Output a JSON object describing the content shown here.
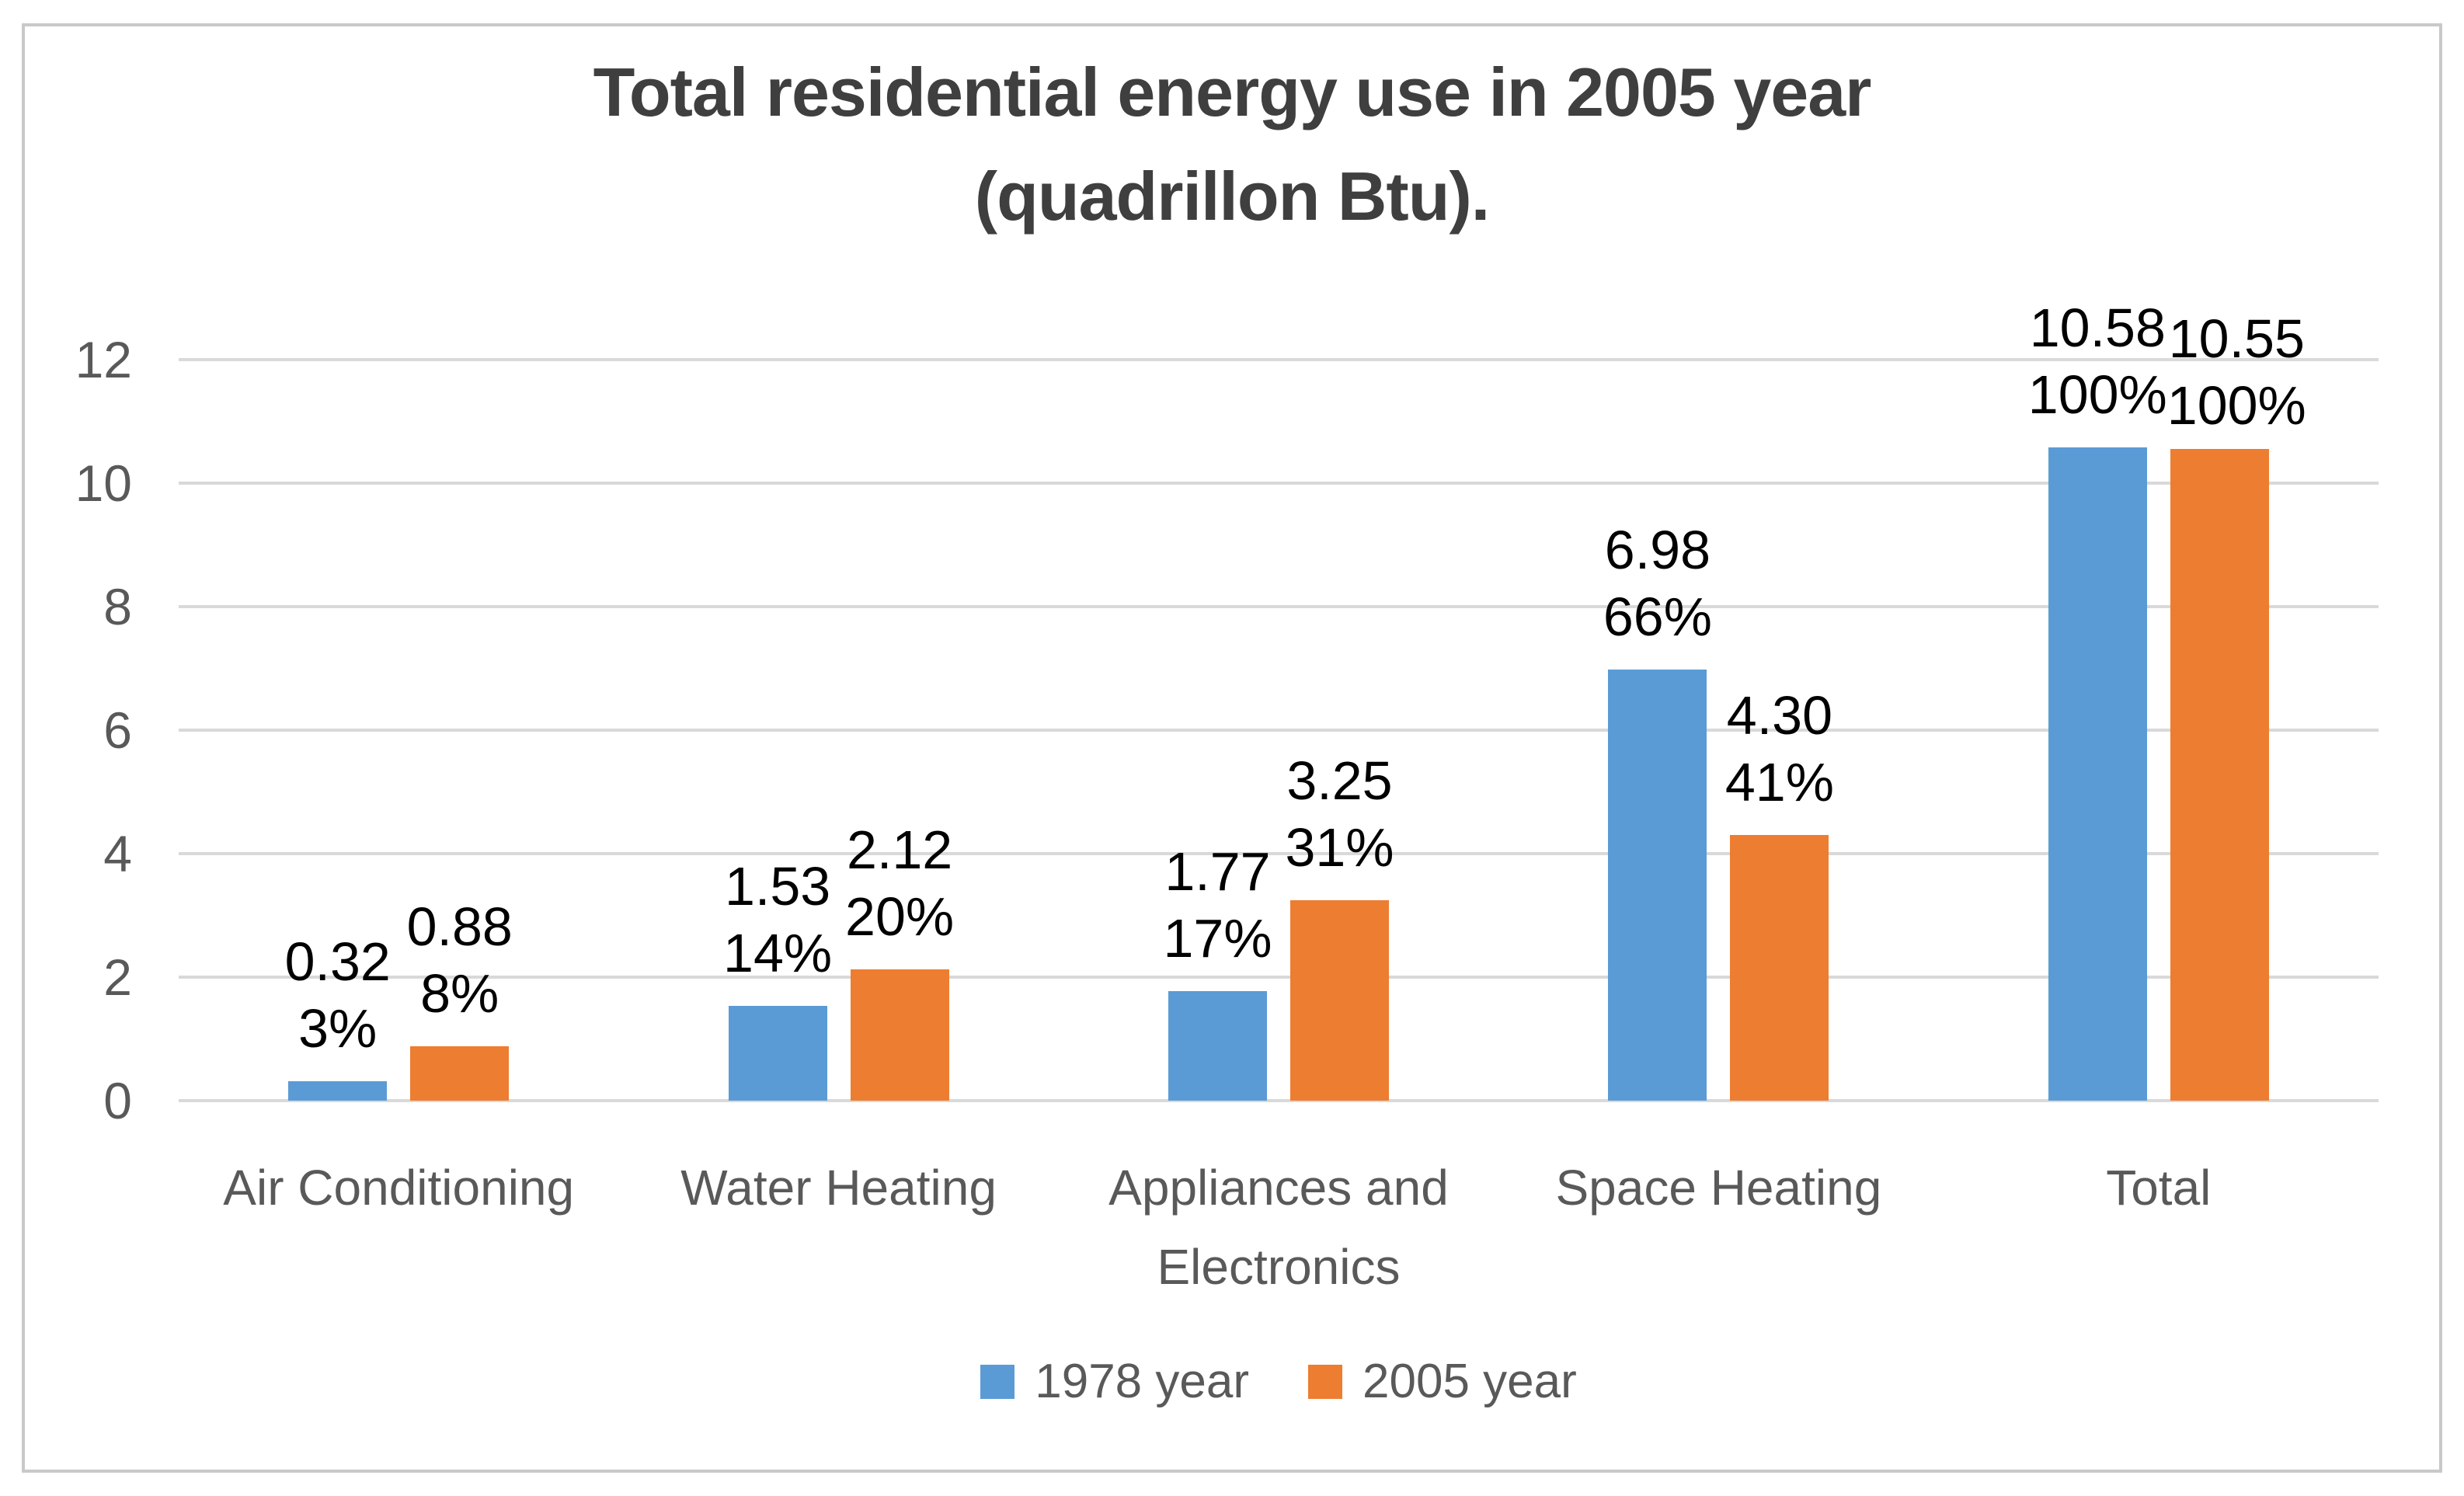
{
  "chart_data": {
    "type": "bar",
    "title": "Total residential energy use in 2005 year (quadrillon Btu).",
    "title_lines": [
      "Total residential energy use in 2005 year",
      "(quadrillon Btu)."
    ],
    "categories": [
      "Air Conditioning",
      "Water Heating",
      "Appliances and Electronics",
      "Space Heating",
      "Total"
    ],
    "series": [
      {
        "name": "1978 year",
        "color": "#5B9BD5",
        "values": [
          0.32,
          1.53,
          1.77,
          6.98,
          10.58
        ],
        "value_labels": [
          "0.32",
          "1.53",
          "1.77",
          "6.98",
          "10.58"
        ],
        "pct_labels": [
          "3%",
          "14%",
          "17%",
          "66%",
          "100%"
        ]
      },
      {
        "name": "2005 year",
        "color": "#ED7D31",
        "values": [
          0.88,
          2.12,
          3.25,
          4.3,
          10.55
        ],
        "value_labels": [
          "0.88",
          "2.12",
          "3.25",
          "4.30",
          "10.55"
        ],
        "pct_labels": [
          "8%",
          "20%",
          "31%",
          "41%",
          "100%"
        ]
      }
    ],
    "y_axis": {
      "min": 0,
      "max": 12,
      "step": 2,
      "tick_labels": [
        "0",
        "2",
        "4",
        "6",
        "8",
        "10",
        "12"
      ]
    },
    "grid": true,
    "legend_position": "bottom",
    "ui_colors": {
      "grid_line": "#D9D9D9",
      "axis_text": "#595959",
      "title_text": "#3F3F3F",
      "data_label_text": "#000000",
      "chart_border": "#C9C9C9",
      "background": "#FFFFFF"
    }
  }
}
